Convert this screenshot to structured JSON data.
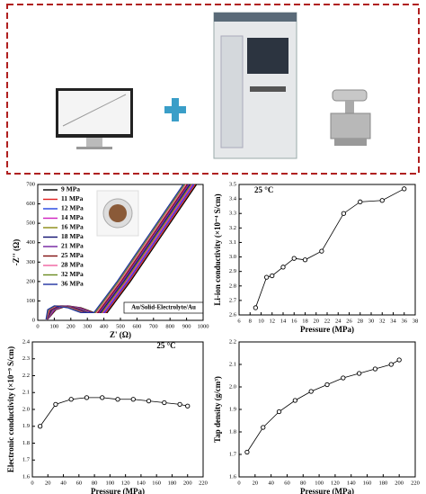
{
  "chart_data": [
    {
      "type": "line",
      "xlabel": "Z' (Ω)",
      "ylabel": "-Z'' (Ω)",
      "annotation": "Au/Solid-Electrolyte/Au",
      "xlim": [
        0,
        1000
      ],
      "xticks": [
        0,
        100,
        200,
        300,
        400,
        500,
        600,
        700,
        800,
        900,
        1000
      ],
      "ylim": [
        0,
        700
      ],
      "yticks": [
        0,
        100,
        200,
        300,
        400,
        500,
        600,
        700
      ],
      "legend": "upper left",
      "markers": false,
      "series": [
        {
          "name": "9 MPa",
          "color": "#000000",
          "x": [
            60,
            110,
            180,
            260,
            340,
            420,
            560,
            760,
            960
          ],
          "values": [
            5,
            55,
            75,
            65,
            40,
            40,
            200,
            450,
            700
          ]
        },
        {
          "name": "11 MPa",
          "color": "#e02020",
          "x": [
            59,
            105,
            172,
            252,
            332,
            412,
            552,
            752,
            952
          ],
          "values": [
            5,
            55,
            75,
            65,
            40,
            40,
            200,
            450,
            700
          ]
        },
        {
          "name": "12 MPa",
          "color": "#2040e0",
          "x": [
            58,
            100,
            164,
            244,
            324,
            404,
            544,
            744,
            944
          ],
          "values": [
            5,
            55,
            75,
            65,
            40,
            40,
            200,
            450,
            700
          ]
        },
        {
          "name": "14 MPa",
          "color": "#d020c0",
          "x": [
            57,
            95,
            156,
            236,
            316,
            396,
            536,
            736,
            936
          ],
          "values": [
            5,
            55,
            75,
            65,
            40,
            40,
            200,
            450,
            700
          ]
        },
        {
          "name": "16 MPa",
          "color": "#8a8a10",
          "x": [
            56,
            90,
            148,
            228,
            308,
            388,
            528,
            728,
            928
          ],
          "values": [
            5,
            55,
            75,
            65,
            40,
            40,
            200,
            450,
            700
          ]
        },
        {
          "name": "18 MPa",
          "color": "#101070",
          "x": [
            55,
            85,
            140,
            220,
            300,
            380,
            520,
            720,
            920
          ],
          "values": [
            5,
            55,
            75,
            65,
            40,
            40,
            200,
            450,
            700
          ]
        },
        {
          "name": "21 MPa",
          "color": "#7020a0",
          "x": [
            54,
            80,
            132,
            212,
            292,
            372,
            512,
            712,
            912
          ],
          "values": [
            5,
            55,
            75,
            65,
            40,
            40,
            200,
            450,
            700
          ]
        },
        {
          "name": "25 MPa",
          "color": "#801010",
          "x": [
            53,
            75,
            124,
            204,
            284,
            364,
            504,
            704,
            904
          ],
          "values": [
            5,
            55,
            75,
            65,
            40,
            40,
            200,
            450,
            700
          ]
        },
        {
          "name": "28 MPa",
          "color": "#f060a0",
          "x": [
            52,
            70,
            116,
            196,
            276,
            356,
            496,
            696,
            896
          ],
          "values": [
            5,
            55,
            75,
            65,
            40,
            40,
            200,
            450,
            700
          ]
        },
        {
          "name": "32 MPa",
          "color": "#6a8a20",
          "x": [
            51,
            65,
            108,
            188,
            268,
            348,
            488,
            688,
            888
          ],
          "values": [
            5,
            55,
            75,
            65,
            40,
            40,
            200,
            450,
            700
          ]
        },
        {
          "name": "36 MPa",
          "color": "#2030a0",
          "x": [
            50,
            60,
            100,
            180,
            260,
            340,
            480,
            680,
            880
          ],
          "values": [
            5,
            55,
            75,
            65,
            40,
            40,
            200,
            450,
            700
          ]
        }
      ]
    },
    {
      "type": "line",
      "xlabel": "Pressure (MPa)",
      "ylabel": "Li-ion conductivity (×10⁻⁴ S/cm)",
      "annotation": "25 °C",
      "xlim": [
        6,
        38
      ],
      "xticks": [
        6,
        8,
        10,
        12,
        14,
        16,
        18,
        20,
        22,
        24,
        26,
        28,
        30,
        32,
        34,
        36,
        38
      ],
      "ylim": [
        2.6,
        3.5
      ],
      "yticks": [
        2.6,
        2.7,
        2.8,
        2.9,
        {
          "value": 3,
          "label": "3.0"
        },
        3.1,
        3.2,
        3.3,
        3.4,
        3.5
      ],
      "markers": true,
      "series": [
        {
          "color": "#000000",
          "x": [
            9,
            11,
            12,
            14,
            16,
            18,
            21,
            25,
            28,
            32,
            36
          ],
          "values": [
            2.65,
            2.86,
            2.87,
            2.93,
            2.99,
            2.98,
            3.04,
            3.3,
            3.38,
            3.39,
            3.47
          ]
        }
      ]
    },
    {
      "type": "line",
      "xlabel": "Pressure (MPa)",
      "ylabel": "Electronic conductivity (×10⁻⁹ S/cm)",
      "annotation": "25 °C",
      "xlim": [
        0,
        220
      ],
      "xticks": [
        0,
        20,
        40,
        60,
        80,
        100,
        120,
        140,
        160,
        180,
        200,
        220
      ],
      "ylim": [
        1.6,
        2.4
      ],
      "yticks": [
        1.6,
        1.7,
        1.8,
        1.9,
        {
          "value": 2,
          "label": "2.0"
        },
        2.1,
        2.2,
        2.3,
        2.4
      ],
      "markers": true,
      "series": [
        {
          "color": "#000000",
          "x": [
            10,
            30,
            50,
            70,
            90,
            110,
            130,
            150,
            170,
            190,
            200
          ],
          "values": [
            1.9,
            2.03,
            2.06,
            2.07,
            2.07,
            2.06,
            2.06,
            2.05,
            2.04,
            2.03,
            2.02
          ]
        }
      ]
    },
    {
      "type": "line",
      "xlabel": "Pressure (MPa)",
      "ylabel": "Tap density (g/cm³)",
      "xlim": [
        0,
        220
      ],
      "xticks": [
        0,
        20,
        40,
        60,
        80,
        100,
        120,
        140,
        160,
        180,
        200,
        220
      ],
      "ylim": [
        1.6,
        2.2
      ],
      "yticks": [
        1.6,
        1.7,
        1.8,
        1.9,
        {
          "value": 2,
          "label": "2.0"
        },
        2.1,
        2.2
      ],
      "markers": true,
      "series": [
        {
          "color": "#000000",
          "x": [
            10,
            30,
            50,
            70,
            90,
            110,
            130,
            150,
            170,
            190,
            200
          ],
          "values": [
            1.71,
            1.82,
            1.89,
            1.94,
            1.98,
            2.01,
            2.04,
            2.06,
            2.08,
            2.1,
            2.12
          ]
        }
      ]
    }
  ]
}
